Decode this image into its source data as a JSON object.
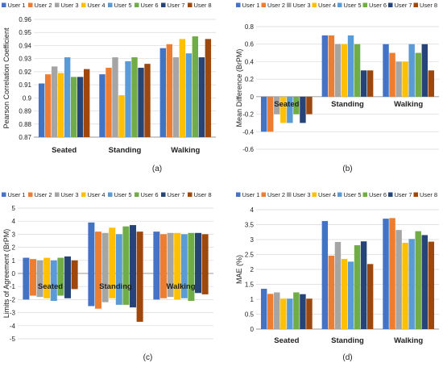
{
  "colors": [
    "#4472C4",
    "#ED7D31",
    "#A5A5A5",
    "#FFC000",
    "#5B9BD5",
    "#70AD47",
    "#264478",
    "#9E480E"
  ],
  "chart_data": [
    {
      "type": "bar",
      "panel_label": "(a)",
      "title": "",
      "ylabel": "Pearson Correlation Coefficient",
      "ylim": [
        0.87,
        0.96
      ],
      "yticks": [
        "0.87",
        "0.88",
        "0.89",
        "0.9",
        "0.91",
        "0.92",
        "0.93",
        "0.94",
        "0.95",
        "0.96"
      ],
      "grid": true,
      "legend_position": "top-left",
      "categories": [
        "Seated",
        "Standing",
        "Walking"
      ],
      "series": [
        {
          "name": "User 1",
          "values": [
            0.911,
            0.918,
            0.938
          ]
        },
        {
          "name": "User 2",
          "values": [
            0.918,
            0.923,
            0.941
          ]
        },
        {
          "name": "User 3",
          "values": [
            0.924,
            0.931,
            0.931
          ]
        },
        {
          "name": "User 4",
          "values": [
            0.919,
            0.902,
            0.945
          ]
        },
        {
          "name": "User 5",
          "values": [
            0.931,
            0.928,
            0.934
          ]
        },
        {
          "name": "User 6",
          "values": [
            0.916,
            0.931,
            0.947
          ]
        },
        {
          "name": "User 7",
          "values": [
            0.916,
            0.923,
            0.931
          ]
        },
        {
          "name": "User 8",
          "values": [
            0.922,
            0.926,
            0.945
          ]
        }
      ]
    },
    {
      "type": "bar",
      "panel_label": "(b)",
      "title": "",
      "ylabel": "Mean Difference (BrPM)",
      "ylim": [
        -0.6,
        0.8
      ],
      "yticks": [
        "-0.6",
        "-0.4",
        "-0.2",
        "0",
        "0.2",
        "0.4",
        "0.6",
        "0.8"
      ],
      "grid": true,
      "legend_position": "top",
      "categories": [
        "Seated",
        "Standing",
        "Walking"
      ],
      "series": [
        {
          "name": "User 1",
          "values": [
            -0.4,
            0.7,
            0.6
          ]
        },
        {
          "name": "User 2",
          "values": [
            -0.4,
            0.7,
            0.5
          ]
        },
        {
          "name": "User 3",
          "values": [
            -0.2,
            0.6,
            0.4
          ]
        },
        {
          "name": "User 4",
          "values": [
            -0.3,
            0.6,
            0.4
          ]
        },
        {
          "name": "User 5",
          "values": [
            -0.3,
            0.7,
            0.6
          ]
        },
        {
          "name": "User 6",
          "values": [
            -0.2,
            0.6,
            0.5
          ]
        },
        {
          "name": "User 7",
          "values": [
            -0.3,
            0.3,
            0.6
          ]
        },
        {
          "name": "User 8",
          "values": [
            -0.2,
            0.3,
            0.3
          ]
        }
      ]
    },
    {
      "type": "bar",
      "panel_label": "(c)",
      "title": "",
      "ylabel": "Limits of Agreement (BrPM)",
      "ylim": [
        -5,
        5
      ],
      "yticks": [
        "-5",
        "-4",
        "-3",
        "-2",
        "-1",
        "0",
        "1",
        "2",
        "3",
        "4",
        "5"
      ],
      "grid": true,
      "legend_position": "top",
      "categories": [
        "Seated",
        "Standing",
        "Walking"
      ],
      "series": [
        {
          "name": "User 1",
          "upper": [
            1.2,
            3.9,
            3.2
          ],
          "lower": [
            -2.0,
            -2.5,
            -2.0
          ]
        },
        {
          "name": "User 2",
          "upper": [
            1.1,
            3.2,
            3.0
          ],
          "lower": [
            -1.7,
            -2.7,
            -1.9
          ]
        },
        {
          "name": "User 3",
          "upper": [
            1.0,
            3.1,
            3.1
          ],
          "lower": [
            -1.8,
            -2.2,
            -1.8
          ]
        },
        {
          "name": "User 4",
          "upper": [
            1.2,
            3.5,
            3.1
          ],
          "lower": [
            -1.9,
            -1.9,
            -2.0
          ]
        },
        {
          "name": "User 5",
          "upper": [
            1.0,
            3.0,
            3.0
          ],
          "lower": [
            -2.1,
            -2.4,
            -1.9
          ]
        },
        {
          "name": "User 6",
          "upper": [
            1.2,
            3.6,
            3.1
          ],
          "lower": [
            -1.7,
            -2.4,
            -2.1
          ]
        },
        {
          "name": "User 7",
          "upper": [
            1.3,
            3.7,
            3.1
          ],
          "lower": [
            -1.9,
            -2.6,
            -1.5
          ]
        },
        {
          "name": "User 8",
          "upper": [
            1.0,
            3.2,
            3.0
          ],
          "lower": [
            -1.2,
            -3.7,
            -1.6
          ]
        }
      ]
    },
    {
      "type": "bar",
      "panel_label": "(d)",
      "title": "",
      "ylabel": "MAE (%)",
      "ylim": [
        0,
        4
      ],
      "yticks": [
        "0",
        "0.5",
        "1",
        "1.5",
        "2",
        "2.5",
        "3",
        "3.5",
        "4"
      ],
      "grid": true,
      "legend_position": "top",
      "categories": [
        "Seated",
        "Standing",
        "Walking"
      ],
      "series": [
        {
          "name": "User 1",
          "values": [
            1.35,
            3.62,
            3.7
          ]
        },
        {
          "name": "User 2",
          "values": [
            1.18,
            2.46,
            3.72
          ]
        },
        {
          "name": "User 3",
          "values": [
            1.23,
            2.92,
            3.32
          ]
        },
        {
          "name": "User 4",
          "values": [
            1.02,
            2.35,
            2.89
          ]
        },
        {
          "name": "User 5",
          "values": [
            1.02,
            2.26,
            3.02
          ]
        },
        {
          "name": "User 6",
          "values": [
            1.23,
            2.81,
            3.28
          ]
        },
        {
          "name": "User 7",
          "values": [
            1.17,
            2.94,
            3.15
          ]
        },
        {
          "name": "User 8",
          "values": [
            1.02,
            2.18,
            2.93
          ]
        }
      ]
    }
  ]
}
